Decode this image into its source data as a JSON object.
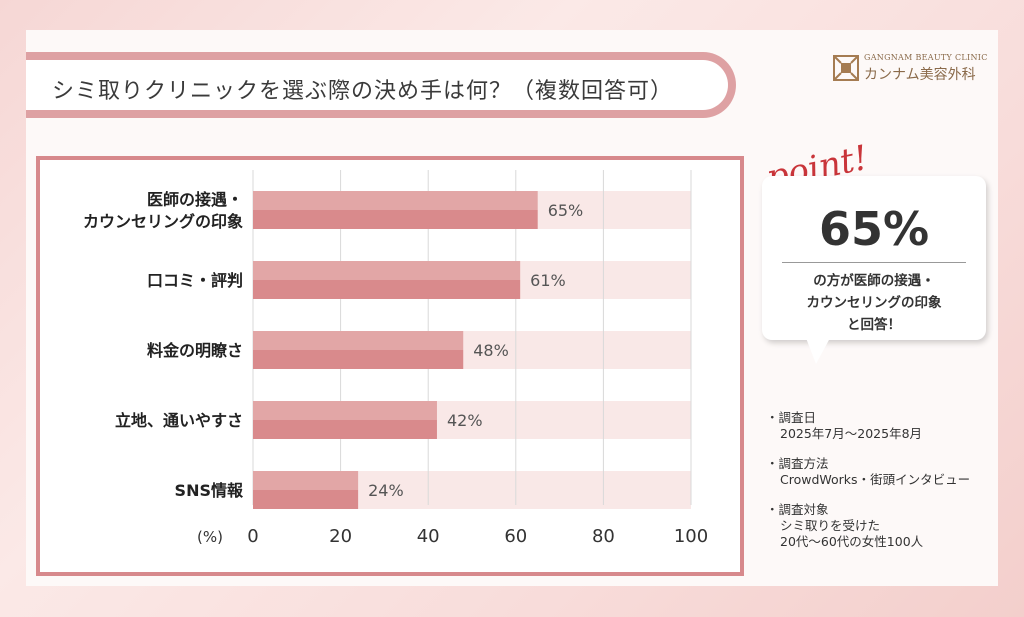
{
  "title": "シミ取りクリニックを選ぶ際の決め手は何？（複数回答可）",
  "logo": {
    "en": "GANGNAM BEAUTY CLINIC",
    "jp": "カンナム美容外科"
  },
  "chart_data": {
    "type": "bar",
    "orientation": "horizontal",
    "categories": [
      [
        "医師の接遇・",
        "カウンセリングの印象"
      ],
      [
        "口コミ・評判"
      ],
      [
        "料金の明瞭さ"
      ],
      [
        "立地、通いやすさ"
      ],
      [
        "SNS情報"
      ]
    ],
    "values": [
      65,
      61,
      48,
      42,
      24
    ],
    "value_labels": [
      "65%",
      "61%",
      "48%",
      "42%",
      "24%"
    ],
    "xlim": [
      0,
      100
    ],
    "xticks": [
      0,
      20,
      40,
      60,
      80,
      100
    ],
    "xlabel": "(%)",
    "grid": true,
    "colors": {
      "bar": "#e2a6a6",
      "bar_dark": "#d98a8c",
      "track": "#f9e8e7",
      "frame": "#d7898c"
    }
  },
  "point": {
    "word": "point!",
    "percent": "65%",
    "caption": [
      "の方が医師の接遇・",
      "カウンセリングの印象",
      "と回答！"
    ]
  },
  "survey": [
    {
      "label": "・調査日",
      "value": "2025年7月〜2025年8月"
    },
    {
      "label": "・調査方法",
      "value": "CrowdWorks・街頭インタビュー"
    },
    {
      "label": "・調査対象",
      "value": [
        "シミ取りを受けた",
        "20代〜60代の女性100人"
      ]
    }
  ]
}
